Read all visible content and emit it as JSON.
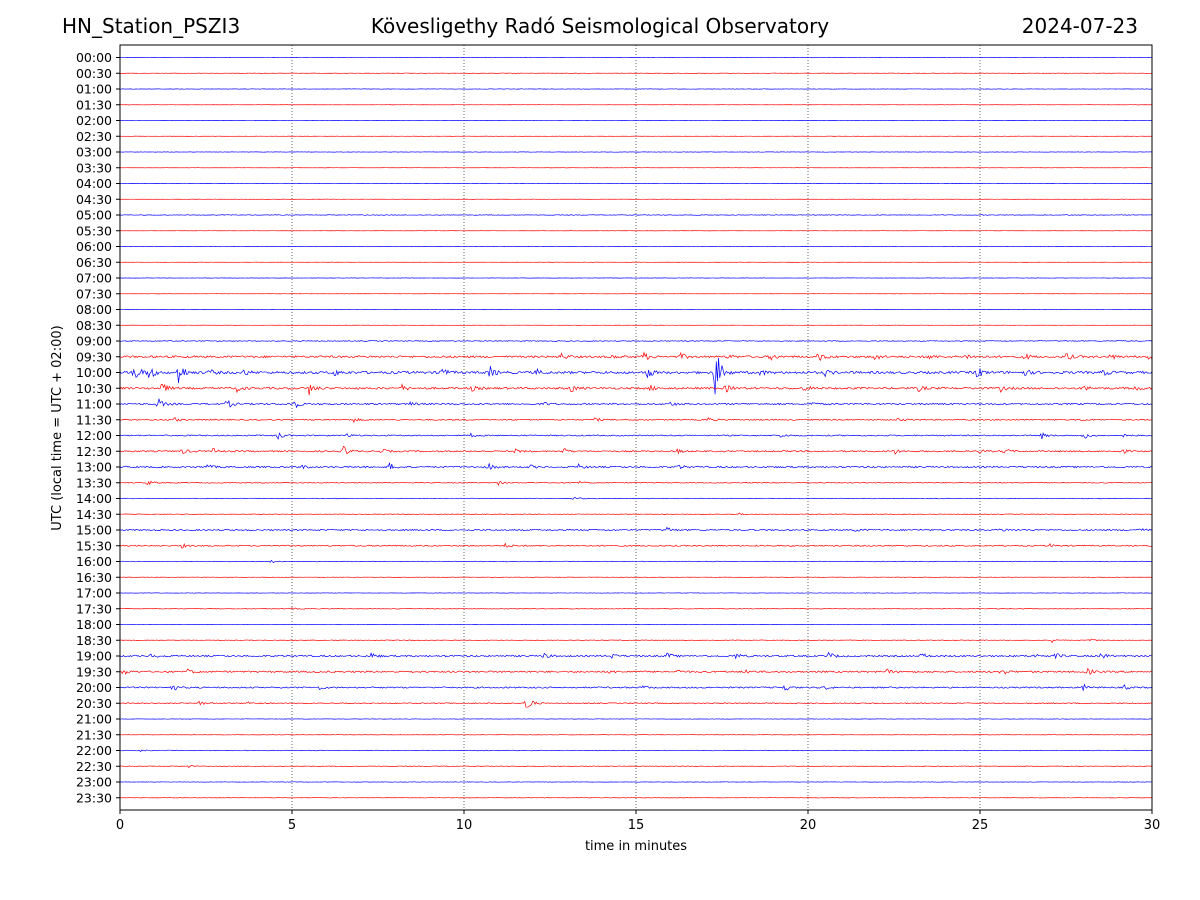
{
  "header": {
    "station": "HN_Station_PSZI3",
    "title": "Kövesligethy Radó Seismological Observatory",
    "date": "2024-07-23"
  },
  "chart_data": {
    "type": "line",
    "chart_kind": "helicorder",
    "xlabel": "time in minutes",
    "ylabel": "UTC (local time = UTC + 02:00)",
    "xlim": [
      0,
      30
    ],
    "x_ticks": [
      0,
      5,
      10,
      15,
      20,
      25,
      30
    ],
    "x_gridlines": [
      5,
      10,
      15,
      20,
      25
    ],
    "grid": "vertical dotted",
    "row_colors": [
      "#0000ff",
      "#ff0000"
    ],
    "rows": [
      {
        "label": "00:00",
        "level": 0.2,
        "events": [
          {
            "t": 20.1,
            "a": 0.25
          }
        ]
      },
      {
        "label": "00:30",
        "level": 0.2,
        "events": [
          {
            "t": 19.4,
            "a": 0.3
          }
        ]
      },
      {
        "label": "01:00",
        "level": 0.2,
        "events": []
      },
      {
        "label": "01:30",
        "level": 0.1,
        "events": []
      },
      {
        "label": "02:00",
        "level": 0.15,
        "events": []
      },
      {
        "label": "02:30",
        "level": 0.1,
        "events": []
      },
      {
        "label": "03:00",
        "level": 0.2,
        "events": []
      },
      {
        "label": "03:30",
        "level": 0.1,
        "events": []
      },
      {
        "label": "04:00",
        "level": 0.15,
        "events": []
      },
      {
        "label": "04:30",
        "level": 0.1,
        "events": []
      },
      {
        "label": "05:00",
        "level": 0.3,
        "events": [
          {
            "t": 25.0,
            "a": 0.3
          },
          {
            "t": 27.5,
            "a": 0.3
          }
        ]
      },
      {
        "label": "05:30",
        "level": 0.1,
        "events": []
      },
      {
        "label": "06:00",
        "level": 0.15,
        "events": []
      },
      {
        "label": "06:30",
        "level": 0.1,
        "events": []
      },
      {
        "label": "07:00",
        "level": 0.15,
        "events": []
      },
      {
        "label": "07:30",
        "level": 0.1,
        "events": []
      },
      {
        "label": "08:00",
        "level": 0.15,
        "events": []
      },
      {
        "label": "08:30",
        "level": 0.1,
        "events": []
      },
      {
        "label": "09:00",
        "level": 0.4,
        "events": [
          {
            "t": 27.5,
            "a": 0.5
          },
          {
            "t": 29.0,
            "a": 0.5
          }
        ]
      },
      {
        "label": "09:30",
        "level": 1.0,
        "events": [
          {
            "t": 12.8,
            "a": 4
          },
          {
            "t": 14.3,
            "a": 2
          },
          {
            "t": 15.2,
            "a": 5
          },
          {
            "t": 16.3,
            "a": 3
          },
          {
            "t": 17.7,
            "a": 2
          },
          {
            "t": 18.9,
            "a": 4
          },
          {
            "t": 20.3,
            "a": 5
          },
          {
            "t": 21.9,
            "a": 5
          },
          {
            "t": 23.5,
            "a": 3
          },
          {
            "t": 24.6,
            "a": 3
          },
          {
            "t": 26.3,
            "a": 3
          },
          {
            "t": 27.5,
            "a": 4
          },
          {
            "t": 28.8,
            "a": 3
          },
          {
            "t": 29.9,
            "a": 4
          }
        ]
      },
      {
        "label": "10:00",
        "level": 1.2,
        "events": [
          {
            "t": 0.4,
            "a": 12
          },
          {
            "t": 0.8,
            "a": 10
          },
          {
            "t": 1.7,
            "a": 13
          },
          {
            "t": 2.6,
            "a": 3
          },
          {
            "t": 3.6,
            "a": 3
          },
          {
            "t": 6.2,
            "a": 4
          },
          {
            "t": 9.3,
            "a": 7
          },
          {
            "t": 10.7,
            "a": 9
          },
          {
            "t": 12.1,
            "a": 3
          },
          {
            "t": 15.3,
            "a": 7
          },
          {
            "t": 17.3,
            "a": 30
          },
          {
            "t": 18.6,
            "a": 3
          },
          {
            "t": 20.5,
            "a": 3
          },
          {
            "t": 24.9,
            "a": 7
          },
          {
            "t": 26.3,
            "a": 3
          },
          {
            "t": 28.6,
            "a": 3
          }
        ]
      },
      {
        "label": "10:30",
        "level": 1.0,
        "events": [
          {
            "t": 1.2,
            "a": 6
          },
          {
            "t": 3.4,
            "a": 3
          },
          {
            "t": 5.5,
            "a": 6
          },
          {
            "t": 8.2,
            "a": 3
          },
          {
            "t": 10.2,
            "a": 3
          },
          {
            "t": 13.1,
            "a": 4
          },
          {
            "t": 15.4,
            "a": 3
          },
          {
            "t": 17.6,
            "a": 4
          },
          {
            "t": 19.9,
            "a": 3
          },
          {
            "t": 23.2,
            "a": 3
          },
          {
            "t": 25.6,
            "a": 3
          },
          {
            "t": 28.0,
            "a": 3
          },
          {
            "t": 29.5,
            "a": 3
          }
        ]
      },
      {
        "label": "11:00",
        "level": 0.8,
        "events": [
          {
            "t": 1.1,
            "a": 6
          },
          {
            "t": 3.1,
            "a": 5
          },
          {
            "t": 5.0,
            "a": 8
          },
          {
            "t": 8.4,
            "a": 2
          },
          {
            "t": 12.3,
            "a": 2
          },
          {
            "t": 16.0,
            "a": 2
          },
          {
            "t": 20.1,
            "a": 2
          }
        ]
      },
      {
        "label": "11:30",
        "level": 0.6,
        "events": [
          {
            "t": 1.6,
            "a": 2
          },
          {
            "t": 6.8,
            "a": 2
          },
          {
            "t": 13.8,
            "a": 2
          },
          {
            "t": 17.1,
            "a": 2
          },
          {
            "t": 22.6,
            "a": 2
          },
          {
            "t": 27.9,
            "a": 2
          }
        ]
      },
      {
        "label": "12:00",
        "level": 0.6,
        "events": [
          {
            "t": 4.6,
            "a": 4
          },
          {
            "t": 6.6,
            "a": 2
          },
          {
            "t": 10.2,
            "a": 2
          },
          {
            "t": 19.2,
            "a": 2
          },
          {
            "t": 26.8,
            "a": 3
          },
          {
            "t": 28.0,
            "a": 4
          },
          {
            "t": 29.1,
            "a": 2
          }
        ]
      },
      {
        "label": "12:30",
        "level": 0.7,
        "events": [
          {
            "t": 1.8,
            "a": 3
          },
          {
            "t": 2.7,
            "a": 3
          },
          {
            "t": 6.5,
            "a": 5
          },
          {
            "t": 7.6,
            "a": 3
          },
          {
            "t": 11.5,
            "a": 2
          },
          {
            "t": 12.9,
            "a": 3
          },
          {
            "t": 16.2,
            "a": 2
          },
          {
            "t": 22.5,
            "a": 3
          },
          {
            "t": 25.0,
            "a": 2
          },
          {
            "t": 25.7,
            "a": 3
          },
          {
            "t": 29.1,
            "a": 3
          }
        ]
      },
      {
        "label": "13:00",
        "level": 0.8,
        "events": [
          {
            "t": 2.5,
            "a": 3
          },
          {
            "t": 5.2,
            "a": 3
          },
          {
            "t": 7.8,
            "a": 5
          },
          {
            "t": 10.7,
            "a": 4
          },
          {
            "t": 11.9,
            "a": 2
          },
          {
            "t": 13.3,
            "a": 3
          },
          {
            "t": 16.2,
            "a": 3
          }
        ]
      },
      {
        "label": "13:30",
        "level": 0.4,
        "events": [
          {
            "t": 0.8,
            "a": 3
          },
          {
            "t": 11.0,
            "a": 2
          },
          {
            "t": 13.3,
            "a": 2
          }
        ]
      },
      {
        "label": "14:00",
        "level": 0.3,
        "events": [
          {
            "t": 13.2,
            "a": 2
          }
        ]
      },
      {
        "label": "14:30",
        "level": 0.3,
        "events": [
          {
            "t": 18.0,
            "a": 1
          }
        ]
      },
      {
        "label": "15:00",
        "level": 0.7,
        "events": [
          {
            "t": 15.9,
            "a": 3
          },
          {
            "t": 21.4,
            "a": 2
          },
          {
            "t": 25.6,
            "a": 2
          },
          {
            "t": 29.6,
            "a": 2
          }
        ]
      },
      {
        "label": "15:30",
        "level": 0.6,
        "events": [
          {
            "t": 1.8,
            "a": 2
          },
          {
            "t": 11.2,
            "a": 2
          },
          {
            "t": 27.0,
            "a": 2
          }
        ]
      },
      {
        "label": "16:00",
        "level": 0.3,
        "events": [
          {
            "t": 4.4,
            "a": 1.5
          }
        ]
      },
      {
        "label": "16:30",
        "level": 0.2,
        "events": []
      },
      {
        "label": "17:00",
        "level": 0.2,
        "events": []
      },
      {
        "label": "17:30",
        "level": 0.3,
        "events": [
          {
            "t": 5.0,
            "a": 1
          }
        ]
      },
      {
        "label": "18:00",
        "level": 0.2,
        "events": []
      },
      {
        "label": "18:30",
        "level": 0.3,
        "events": [
          {
            "t": 27.1,
            "a": 2
          },
          {
            "t": 28.2,
            "a": 1.5
          }
        ]
      },
      {
        "label": "19:00",
        "level": 0.8,
        "events": [
          {
            "t": 0.9,
            "a": 2
          },
          {
            "t": 7.3,
            "a": 3
          },
          {
            "t": 12.3,
            "a": 3
          },
          {
            "t": 14.3,
            "a": 2
          },
          {
            "t": 15.9,
            "a": 3
          },
          {
            "t": 17.9,
            "a": 3
          },
          {
            "t": 20.6,
            "a": 4
          },
          {
            "t": 23.3,
            "a": 3
          },
          {
            "t": 26.6,
            "a": 2
          },
          {
            "t": 27.2,
            "a": 3
          },
          {
            "t": 28.5,
            "a": 4
          }
        ]
      },
      {
        "label": "19:30",
        "level": 0.8,
        "events": [
          {
            "t": 0.1,
            "a": 3
          },
          {
            "t": 1.9,
            "a": 4
          },
          {
            "t": 14.2,
            "a": 2
          },
          {
            "t": 16.2,
            "a": 2
          },
          {
            "t": 18.2,
            "a": 2
          },
          {
            "t": 22.3,
            "a": 2
          },
          {
            "t": 25.6,
            "a": 4
          },
          {
            "t": 28.1,
            "a": 4
          }
        ]
      },
      {
        "label": "20:00",
        "level": 0.7,
        "events": [
          {
            "t": 1.5,
            "a": 4
          },
          {
            "t": 5.8,
            "a": 2
          },
          {
            "t": 15.2,
            "a": 2
          },
          {
            "t": 19.3,
            "a": 4
          },
          {
            "t": 20.5,
            "a": 2
          },
          {
            "t": 28.0,
            "a": 3
          },
          {
            "t": 29.2,
            "a": 2
          }
        ]
      },
      {
        "label": "20:30",
        "level": 0.5,
        "events": [
          {
            "t": 2.3,
            "a": 2
          },
          {
            "t": 3.7,
            "a": 2
          },
          {
            "t": 11.8,
            "a": 10
          }
        ]
      },
      {
        "label": "21:00",
        "level": 0.2,
        "events": []
      },
      {
        "label": "21:30",
        "level": 0.2,
        "events": []
      },
      {
        "label": "22:00",
        "level": 0.3,
        "events": [
          {
            "t": 0.6,
            "a": 1
          }
        ]
      },
      {
        "label": "22:30",
        "level": 0.3,
        "events": [
          {
            "t": 2.0,
            "a": 1
          }
        ]
      },
      {
        "label": "23:00",
        "level": 0.2,
        "events": []
      },
      {
        "label": "23:30",
        "level": 0.2,
        "events": []
      }
    ]
  }
}
